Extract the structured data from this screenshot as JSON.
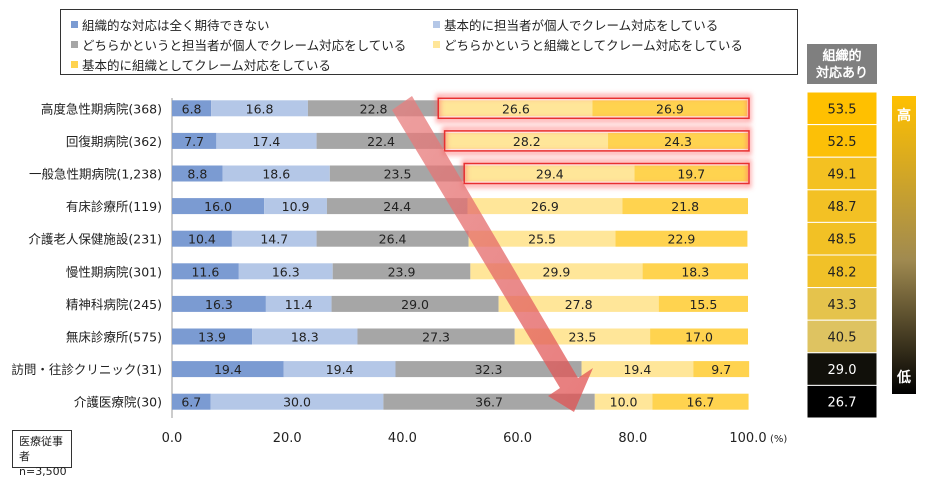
{
  "chart_data": {
    "type": "stacked-bar-horizontal",
    "categories": [
      "高度急性期病院(368)",
      "回復期病院(362)",
      "一般急性期病院(1,238)",
      "有床診療所(119)",
      "介護老人保健施設(231)",
      "慢性期病院(301)",
      "精神科病院(245)",
      "無床診療所(575)",
      "訪問・往診クリニック(31)",
      "介護医療院(30)"
    ],
    "series": [
      {
        "name": "組織的な対応は全く期待できない",
        "color": "#7b9bd2",
        "values": [
          6.8,
          7.7,
          8.8,
          16.0,
          10.4,
          11.6,
          16.3,
          13.9,
          19.4,
          6.7
        ]
      },
      {
        "name": "基本的に担当者が個人でクレーム対応をしている",
        "color": "#b4c7e7",
        "values": [
          16.8,
          17.4,
          18.6,
          10.9,
          14.7,
          16.3,
          11.4,
          18.3,
          19.4,
          30.0
        ]
      },
      {
        "name": "どちらかというと担当者が個人でクレーム対応をしている",
        "color": "#a6a6a6",
        "values": [
          22.8,
          22.4,
          23.5,
          24.4,
          26.4,
          23.9,
          29.0,
          27.3,
          32.3,
          36.7
        ]
      },
      {
        "name": "どちらかというと組織としてクレーム対応をしている",
        "color": "#ffe699",
        "values": [
          26.6,
          28.2,
          29.4,
          26.9,
          25.5,
          29.9,
          27.8,
          23.5,
          19.4,
          10.0
        ]
      },
      {
        "name": "基本的に組織としてクレーム対応をしている",
        "color": "#ffd34f",
        "values": [
          26.9,
          24.3,
          19.7,
          21.8,
          22.9,
          18.3,
          15.5,
          17.0,
          9.7,
          16.7
        ]
      }
    ],
    "x_ticks": [
      "0.0",
      "20.0",
      "40.0",
      "60.0",
      "80.0",
      "100.0"
    ],
    "x_unit": "(%)",
    "xlim": [
      0,
      100
    ],
    "highlighted_rows": [
      0,
      1,
      2
    ],
    "summary_header": [
      "組織的",
      "対応あり"
    ],
    "summary_values": [
      "53.5",
      "52.5",
      "49.1",
      "48.7",
      "48.5",
      "48.2",
      "43.3",
      "40.5",
      "29.0",
      "26.7"
    ],
    "scale_high": "高",
    "scale_low": "低",
    "note_lines": [
      "医療従事者",
      "n=3,500"
    ]
  }
}
